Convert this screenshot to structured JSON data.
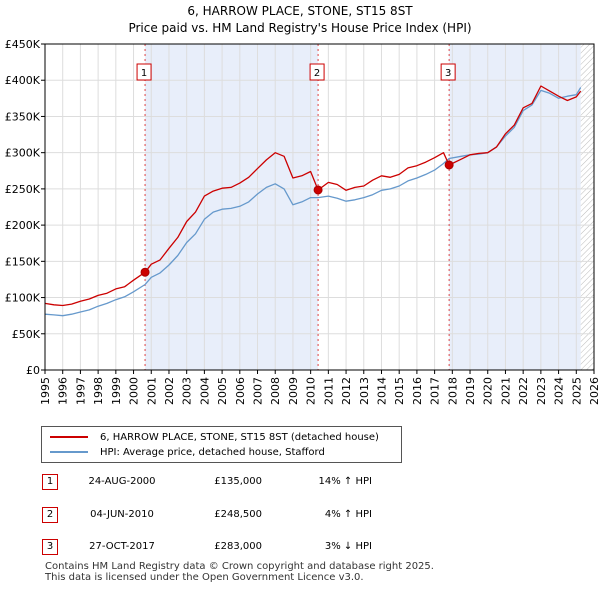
{
  "title_line1": "6, HARROW PLACE, STONE, ST15 8ST",
  "title_line2": "Price paid vs. HM Land Registry's House Price Index (HPI)",
  "chart_data": {
    "type": "line",
    "ylim": [
      0,
      450000
    ],
    "xlim": [
      1995.0,
      2026.0
    ],
    "y_ticks": [
      {
        "value": 0,
        "label": "£0"
      },
      {
        "value": 50000,
        "label": "£50K"
      },
      {
        "value": 100000,
        "label": "£100K"
      },
      {
        "value": 150000,
        "label": "£150K"
      },
      {
        "value": 200000,
        "label": "£200K"
      },
      {
        "value": 250000,
        "label": "£250K"
      },
      {
        "value": 300000,
        "label": "£300K"
      },
      {
        "value": 350000,
        "label": "£350K"
      },
      {
        "value": 400000,
        "label": "£400K"
      },
      {
        "value": 450000,
        "label": "£450K"
      }
    ],
    "x_ticks": [
      "1995",
      "1996",
      "1997",
      "1998",
      "1999",
      "2000",
      "2001",
      "2002",
      "2003",
      "2004",
      "2005",
      "2006",
      "2007",
      "2008",
      "2009",
      "2010",
      "2011",
      "2012",
      "2013",
      "2014",
      "2015",
      "2016",
      "2017",
      "2018",
      "2019",
      "2020",
      "2021",
      "2022",
      "2023",
      "2024",
      "2025",
      "2026"
    ],
    "grid": true,
    "shaded_regions": [
      [
        2000.65,
        2010.42
      ],
      [
        2017.82,
        2025.25
      ]
    ],
    "hatched_after": 2025.25,
    "series": [
      {
        "name": "6, HARROW PLACE, STONE, ST15 8ST (detached house)",
        "color": "#cc0000",
        "x": [
          1995.0,
          1995.5,
          1996.0,
          1996.5,
          1997.0,
          1997.5,
          1998.0,
          1998.5,
          1999.0,
          1999.5,
          2000.0,
          2000.65,
          2001.0,
          2001.5,
          2002.0,
          2002.5,
          2003.0,
          2003.5,
          2004.0,
          2004.5,
          2005.0,
          2005.5,
          2006.0,
          2006.5,
          2007.0,
          2007.5,
          2008.0,
          2008.5,
          2009.0,
          2009.5,
          2010.0,
          2010.42,
          2011.0,
          2011.5,
          2012.0,
          2012.5,
          2013.0,
          2013.5,
          2014.0,
          2014.5,
          2015.0,
          2015.5,
          2016.0,
          2016.5,
          2017.0,
          2017.5,
          2017.82,
          2018.5,
          2019.0,
          2019.5,
          2020.0,
          2020.5,
          2021.0,
          2021.5,
          2022.0,
          2022.5,
          2023.0,
          2023.5,
          2024.0,
          2024.5,
          2025.0,
          2025.25
        ],
        "values": [
          92000,
          90000,
          89000,
          91000,
          95000,
          98000,
          103000,
          106000,
          112000,
          115000,
          124000,
          135000,
          146000,
          152000,
          168000,
          183000,
          205000,
          218000,
          240000,
          247000,
          251000,
          252000,
          258000,
          266000,
          278000,
          290000,
          300000,
          295000,
          265000,
          268000,
          274000,
          248500,
          259000,
          256000,
          248000,
          252000,
          254000,
          262000,
          268000,
          266000,
          270000,
          279000,
          282000,
          287000,
          293000,
          300000,
          283000,
          291000,
          297000,
          299000,
          300000,
          308000,
          326000,
          338000,
          362000,
          368000,
          392000,
          385000,
          378000,
          372000,
          377000,
          385000
        ]
      },
      {
        "name": "HPI: Average price, detached house, Stafford",
        "color": "#6699cc",
        "x": [
          1995.0,
          1995.5,
          1996.0,
          1996.5,
          1997.0,
          1997.5,
          1998.0,
          1998.5,
          1999.0,
          1999.5,
          2000.0,
          2000.65,
          2001.0,
          2001.5,
          2002.0,
          2002.5,
          2003.0,
          2003.5,
          2004.0,
          2004.5,
          2005.0,
          2005.5,
          2006.0,
          2006.5,
          2007.0,
          2007.5,
          2008.0,
          2008.5,
          2009.0,
          2009.5,
          2010.0,
          2010.42,
          2011.0,
          2011.5,
          2012.0,
          2012.5,
          2013.0,
          2013.5,
          2014.0,
          2014.5,
          2015.0,
          2015.5,
          2016.0,
          2016.5,
          2017.0,
          2017.5,
          2017.82,
          2018.5,
          2019.0,
          2019.5,
          2020.0,
          2020.5,
          2021.0,
          2021.5,
          2022.0,
          2022.5,
          2023.0,
          2023.5,
          2024.0,
          2024.5,
          2025.0,
          2025.25
        ],
        "values": [
          77000,
          76000,
          75000,
          77000,
          80000,
          83000,
          88000,
          92000,
          97000,
          101000,
          108000,
          118000,
          128000,
          134000,
          145000,
          158000,
          176000,
          188000,
          208000,
          218000,
          222000,
          223000,
          226000,
          232000,
          243000,
          252000,
          257000,
          250000,
          228000,
          232000,
          238000,
          238000,
          240000,
          237000,
          233000,
          235000,
          238000,
          242000,
          248000,
          250000,
          254000,
          261000,
          265000,
          270000,
          276000,
          285000,
          292000,
          295000,
          297000,
          298000,
          300000,
          308000,
          323000,
          335000,
          358000,
          366000,
          386000,
          382000,
          375000,
          378000,
          380000,
          390000
        ]
      }
    ],
    "sale_markers": [
      {
        "label": "1",
        "x": 2000.65,
        "value": 135000
      },
      {
        "label": "2",
        "x": 2010.42,
        "value": 248500
      },
      {
        "label": "3",
        "x": 2017.82,
        "value": 283000
      }
    ]
  },
  "legend": {
    "property_label": "6, HARROW PLACE, STONE, ST15 8ST (detached house)",
    "hpi_label": "HPI: Average price, detached house, Stafford",
    "property_color": "#cc0000",
    "hpi_color": "#6699cc"
  },
  "sales": [
    {
      "num": "1",
      "date": "24-AUG-2000",
      "price": "£135,000",
      "hpi": "14% ↑ HPI"
    },
    {
      "num": "2",
      "date": "04-JUN-2010",
      "price": "£248,500",
      "hpi": "4% ↑ HPI"
    },
    {
      "num": "3",
      "date": "27-OCT-2017",
      "price": "£283,000",
      "hpi": "3% ↓ HPI"
    }
  ],
  "footer_line1": "Contains HM Land Registry data © Crown copyright and database right 2025.",
  "footer_line2": "This data is licensed under the Open Government Licence v3.0."
}
